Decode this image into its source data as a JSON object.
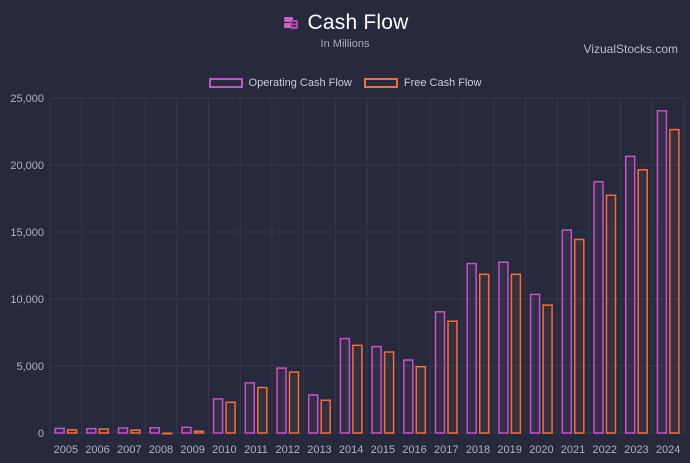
{
  "header": {
    "title": "Cash Flow",
    "subtitle": "In Millions",
    "watermark": "VizualStocks.com"
  },
  "colors": {
    "background": "#272a3d",
    "operating": "#c653c4",
    "free": "#f06f3d",
    "grid": "#35384c",
    "icon": "#d160c6"
  },
  "chart_data": {
    "type": "bar",
    "categories": [
      "2005",
      "2006",
      "2007",
      "2008",
      "2009",
      "2010",
      "2011",
      "2012",
      "2013",
      "2014",
      "2015",
      "2016",
      "2017",
      "2018",
      "2019",
      "2020",
      "2021",
      "2022",
      "2023",
      "2024"
    ],
    "series": [
      {
        "name": "Operating Cash Flow",
        "color": "#c653c4",
        "values": [
          400,
          380,
          430,
          450,
          480,
          2600,
          3800,
          4900,
          2900,
          7100,
          6500,
          5500,
          9100,
          12700,
          12800,
          10400,
          15200,
          18800,
          20700,
          24100
        ]
      },
      {
        "name": "Free Cash Flow",
        "color": "#f06f3d",
        "values": [
          290,
          350,
          270,
          40,
          190,
          2350,
          3450,
          4600,
          2500,
          6600,
          6100,
          5000,
          8400,
          11900,
          11900,
          9600,
          14500,
          17800,
          19700,
          22700
        ]
      }
    ],
    "ylim": [
      0,
      25000
    ],
    "yticks": [
      "0",
      "5,000",
      "10,000",
      "15,000",
      "20,000",
      "25,000"
    ],
    "ytick_values": [
      0,
      5000,
      10000,
      15000,
      20000,
      25000
    ],
    "grid": true,
    "legend": "top-center"
  }
}
